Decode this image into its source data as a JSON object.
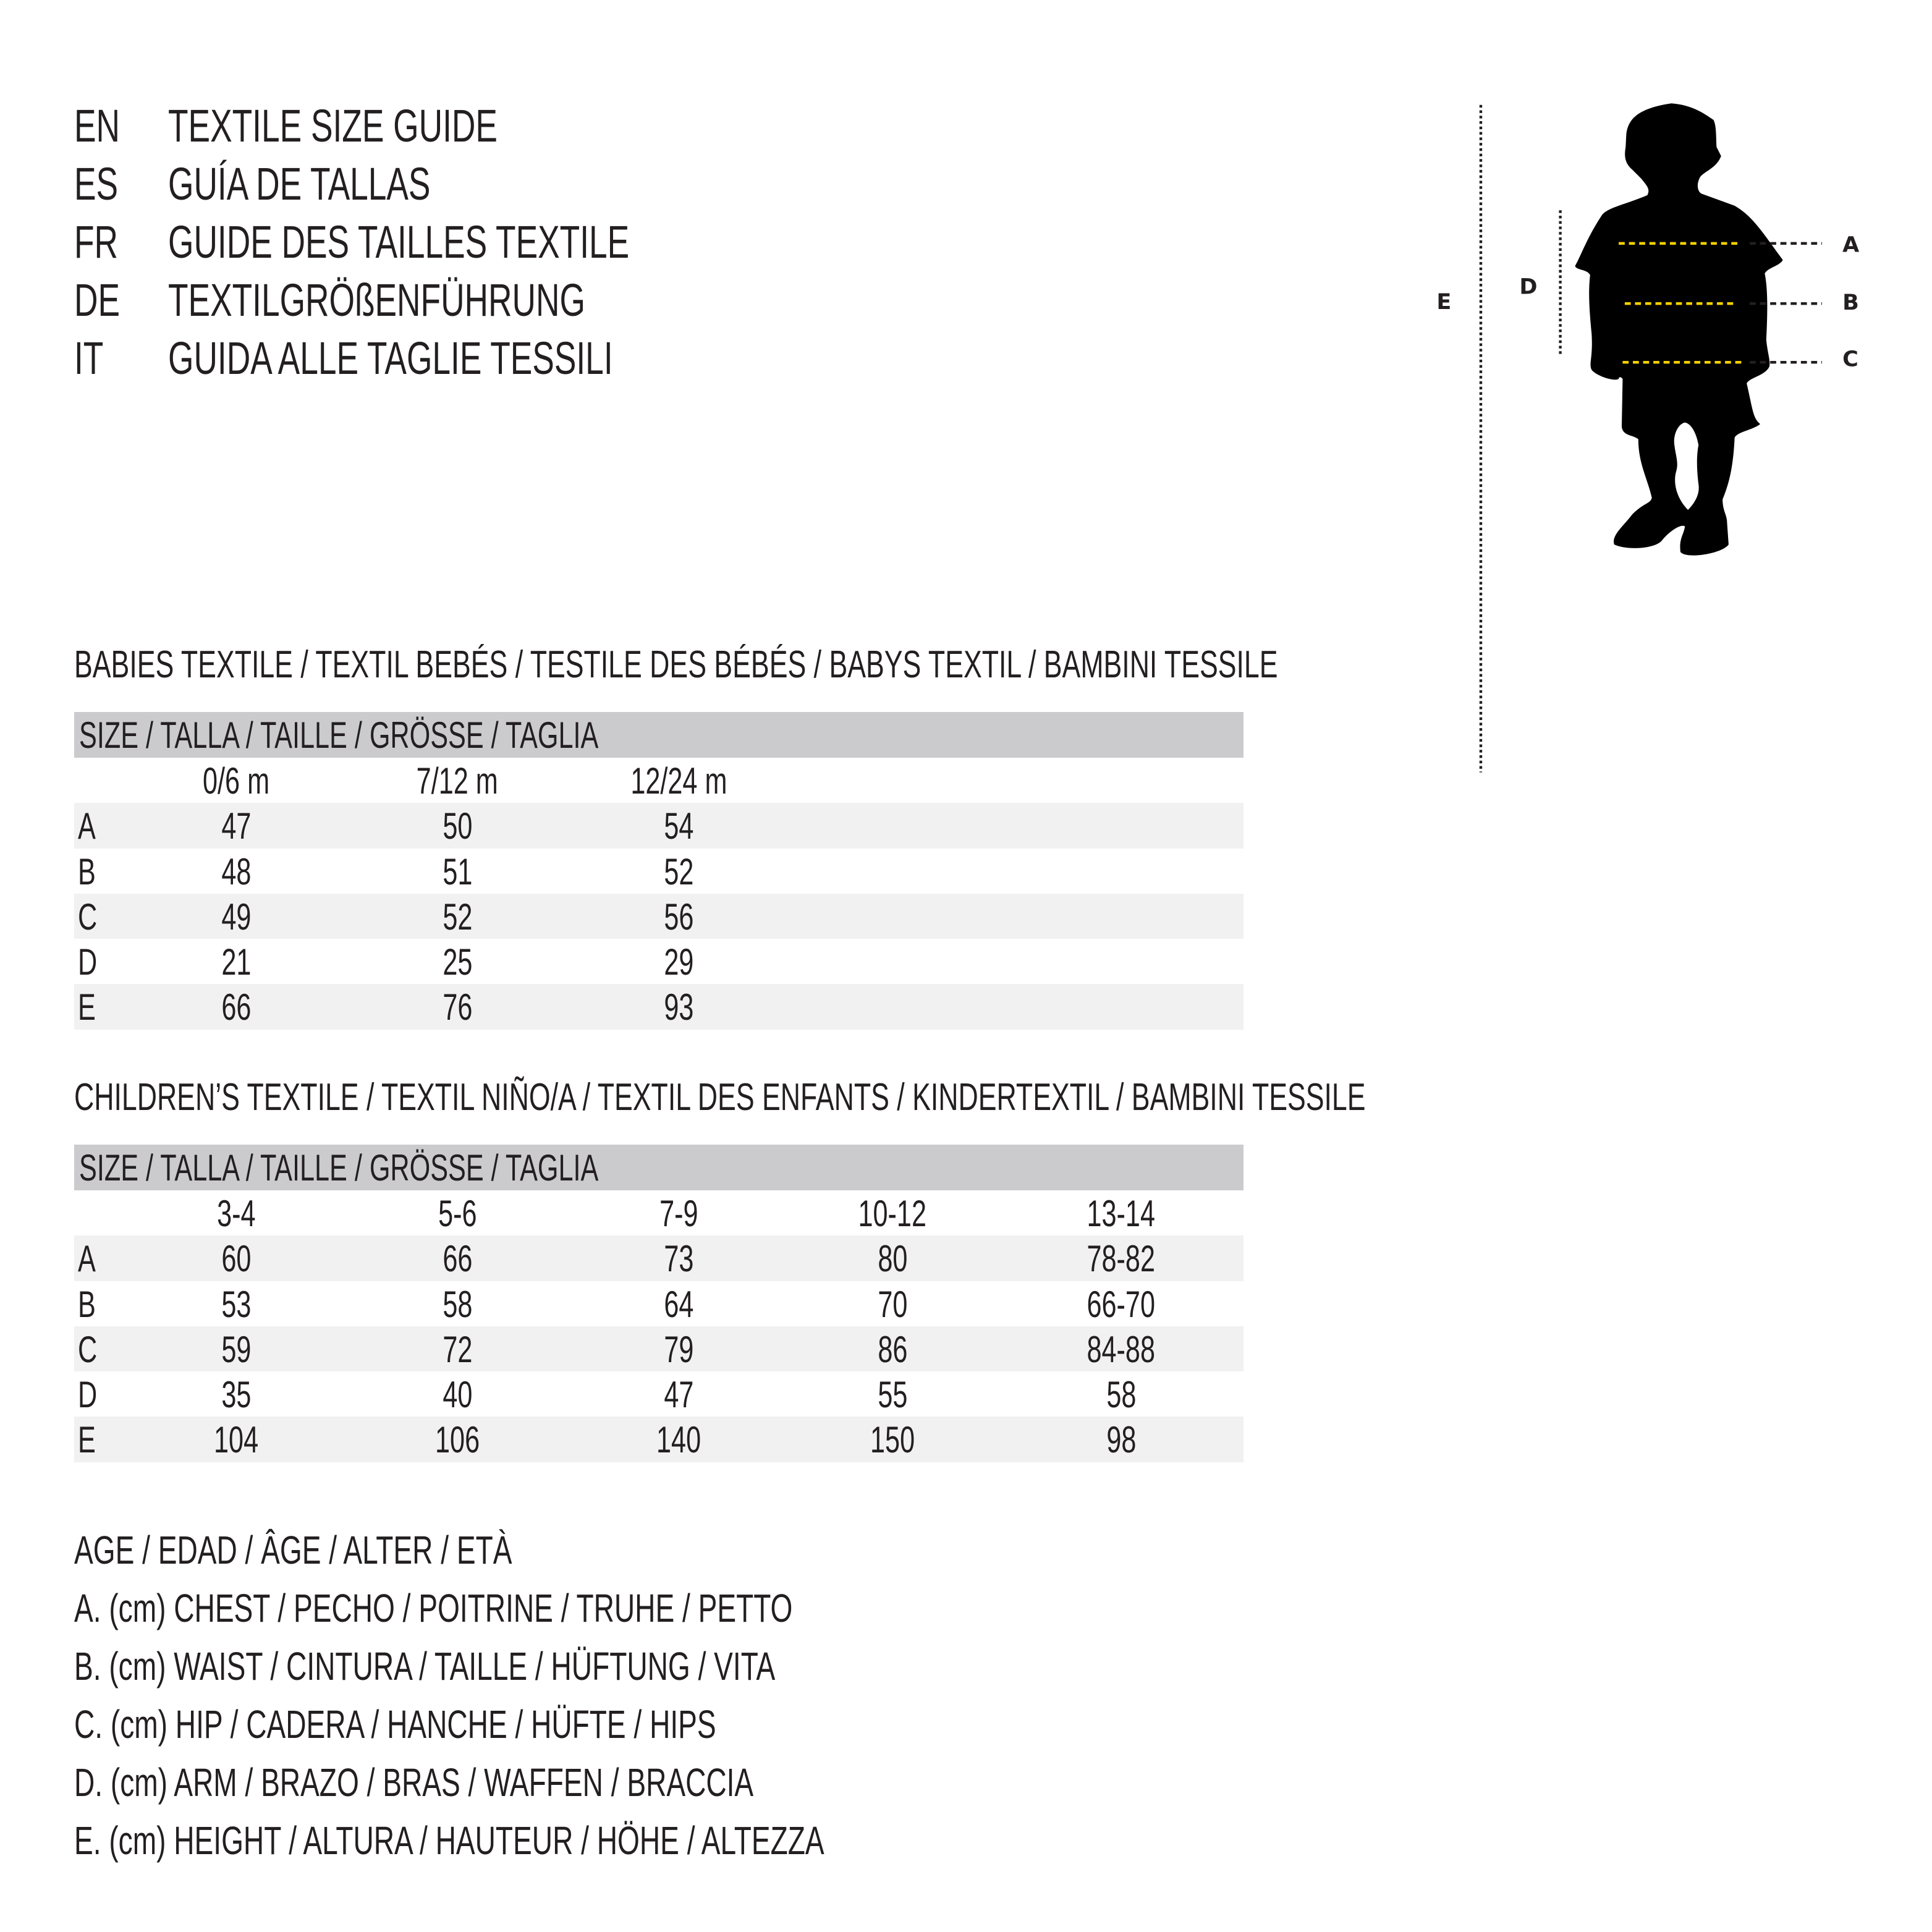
{
  "titles": [
    {
      "code": "EN",
      "text": "TEXTILE SIZE GUIDE"
    },
    {
      "code": "ES",
      "text": "GUÍA DE TALLAS"
    },
    {
      "code": "FR",
      "text": "GUIDE DES TAILLES TEXTILE"
    },
    {
      "code": "DE",
      "text": "TEXTILGRÖßENFÜHRUNG"
    },
    {
      "code": "IT",
      "text": "GUIDA ALLE TAGLIE TESSILI"
    }
  ],
  "babies": {
    "heading": "BABIES TEXTILE / TEXTIL BEBÉS / TESTILE DES BÉBÉS / BABYS TEXTIL / BAMBINI TESSILE",
    "size_header": "SIZE / TALLA / TAILLE / GRÖSSE / TAGLIA",
    "columns": [
      "0/6 m",
      "7/12 m",
      "12/24 m"
    ],
    "rows": [
      {
        "label": "A",
        "values": [
          "47",
          "50",
          "54"
        ]
      },
      {
        "label": "B",
        "values": [
          "48",
          "51",
          "52"
        ]
      },
      {
        "label": "C",
        "values": [
          "49",
          "52",
          "56"
        ]
      },
      {
        "label": "D",
        "values": [
          "21",
          "25",
          "29"
        ]
      },
      {
        "label": "E",
        "values": [
          "66",
          "76",
          "93"
        ]
      }
    ]
  },
  "children": {
    "heading": "CHILDREN’S TEXTILE / TEXTIL NIÑO/A / TEXTIL DES ENFANTS / KINDERTEXTIL / BAMBINI TESSILE",
    "size_header": "SIZE / TALLA / TAILLE / GRÖSSE / TAGLIA",
    "columns": [
      "3-4",
      "5-6",
      "7-9",
      "10-12",
      "13-14"
    ],
    "rows": [
      {
        "label": "A",
        "values": [
          "60",
          "66",
          "73",
          "80",
          "78-82"
        ]
      },
      {
        "label": "B",
        "values": [
          "53",
          "58",
          "64",
          "70",
          "66-70"
        ]
      },
      {
        "label": "C",
        "values": [
          "59",
          "72",
          "79",
          "86",
          "84-88"
        ]
      },
      {
        "label": "D",
        "values": [
          "35",
          "40",
          "47",
          "55",
          "58"
        ]
      },
      {
        "label": "E",
        "values": [
          "104",
          "106",
          "140",
          "150",
          "98"
        ]
      }
    ]
  },
  "legend": [
    "AGE / EDAD / ÂGE / ALTER / ETÀ",
    "A. (cm) CHEST / PECHO / POITRINE / TRUHE / PETTO",
    "B. (cm) WAIST / CINTURA / TAILLE / HÜFTUNG / VITA",
    "C. (cm) HIP / CADERA / HANCHE / HÜFTE / HIPS",
    "D. (cm) ARM / BRAZO / BRAS / WAFFEN / BRACCIA",
    "E. (cm) HEIGHT / ALTURA / HAUTEUR / HÖHE / ALTEZZA"
  ],
  "figure": {
    "labels": {
      "a": "A",
      "b": "B",
      "c": "C",
      "d": "D",
      "e": "E"
    },
    "colors": {
      "measure_line": "#f5d000",
      "guide_line": "#231f20",
      "silhouette": "#000000",
      "header_bar": "#cbcbcd",
      "row_shade": "#f1f1f1"
    }
  }
}
